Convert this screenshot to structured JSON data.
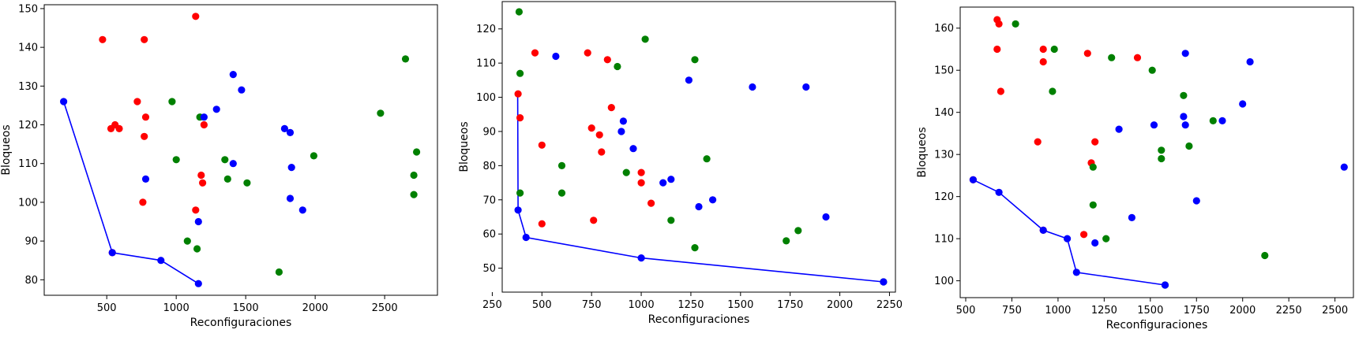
{
  "colors": {
    "red": "#ff0000",
    "green": "#008000",
    "blue": "#0000ff",
    "frontier": "#0000ff"
  },
  "chart_data": [
    {
      "type": "scatter",
      "xlabel": "Reconfiguraciones",
      "ylabel": "Bloqueos",
      "xlim": [
        50,
        2880
      ],
      "ylim": [
        76,
        151
      ],
      "xticks": [
        500,
        1000,
        1500,
        2000,
        2500
      ],
      "yticks": [
        80,
        90,
        100,
        110,
        120,
        130,
        140,
        150
      ],
      "series": [
        {
          "color": "red",
          "points": [
            [
              470,
              142
            ],
            [
              770,
              142
            ],
            [
              1140,
              148
            ],
            [
              780,
              122
            ],
            [
              720,
              126
            ],
            [
              560,
              120
            ],
            [
              530,
              119
            ],
            [
              590,
              119
            ],
            [
              770,
              117
            ],
            [
              1200,
              120
            ],
            [
              1180,
              107
            ],
            [
              1190,
              105
            ],
            [
              760,
              100
            ],
            [
              1140,
              98
            ],
            [
              540,
              87
            ]
          ]
        },
        {
          "color": "green",
          "points": [
            [
              970,
              126
            ],
            [
              1170,
              122
            ],
            [
              1000,
              111
            ],
            [
              1350,
              111
            ],
            [
              1370,
              106
            ],
            [
              1510,
              105
            ],
            [
              1080,
              90
            ],
            [
              1150,
              88
            ],
            [
              1740,
              82
            ],
            [
              1990,
              112
            ],
            [
              2470,
              123
            ],
            [
              2650,
              137
            ],
            [
              2730,
              113
            ],
            [
              2710,
              107
            ],
            [
              2710,
              102
            ]
          ]
        },
        {
          "color": "blue",
          "points": [
            [
              190,
              126
            ],
            [
              540,
              87
            ],
            [
              890,
              85
            ],
            [
              1160,
              79
            ],
            [
              780,
              106
            ],
            [
              1160,
              95
            ],
            [
              1200,
              122
            ],
            [
              1290,
              124
            ],
            [
              1410,
              133
            ],
            [
              1470,
              129
            ],
            [
              1410,
              110
            ],
            [
              1780,
              119
            ],
            [
              1820,
              118
            ],
            [
              1830,
              109
            ],
            [
              1820,
              101
            ],
            [
              1910,
              98
            ]
          ]
        }
      ],
      "frontier": [
        [
          190,
          126
        ],
        [
          540,
          87
        ],
        [
          890,
          85
        ],
        [
          1160,
          79
        ]
      ]
    },
    {
      "type": "scatter",
      "xlabel": "Reconfiguraciones",
      "ylabel": "Bloqueos",
      "xlim": [
        300,
        2280
      ],
      "ylim": [
        43,
        128
      ],
      "xticks": [
        250,
        500,
        750,
        1000,
        1250,
        1500,
        1750,
        2000,
        2250
      ],
      "yticks": [
        50,
        60,
        70,
        80,
        90,
        100,
        110,
        120
      ],
      "series": [
        {
          "color": "red",
          "points": [
            [
              465,
              113
            ],
            [
              730,
              113
            ],
            [
              830,
              111
            ],
            [
              380,
              101
            ],
            [
              390,
              94
            ],
            [
              850,
              97
            ],
            [
              750,
              91
            ],
            [
              790,
              89
            ],
            [
              500,
              86
            ],
            [
              800,
              84
            ],
            [
              1000,
              78
            ],
            [
              1000,
              75
            ],
            [
              1050,
              69
            ],
            [
              760,
              64
            ],
            [
              500,
              63
            ]
          ]
        },
        {
          "color": "green",
          "points": [
            [
              385,
              125
            ],
            [
              390,
              107
            ],
            [
              1020,
              117
            ],
            [
              1270,
              111
            ],
            [
              880,
              109
            ],
            [
              600,
              80
            ],
            [
              925,
              78
            ],
            [
              1330,
              82
            ],
            [
              390,
              72
            ],
            [
              600,
              72
            ],
            [
              1150,
              64
            ],
            [
              1270,
              56
            ],
            [
              1730,
              58
            ],
            [
              1790,
              61
            ],
            [
              2220,
              46
            ]
          ]
        },
        {
          "color": "blue",
          "points": [
            [
              570,
              112
            ],
            [
              1240,
              105
            ],
            [
              1560,
              103
            ],
            [
              1830,
              103
            ],
            [
              910,
              93
            ],
            [
              900,
              90
            ],
            [
              960,
              85
            ],
            [
              1110,
              75
            ],
            [
              1150,
              76
            ],
            [
              1360,
              70
            ],
            [
              1290,
              68
            ],
            [
              1930,
              65
            ],
            [
              380,
              67
            ],
            [
              420,
              59
            ],
            [
              1000,
              53
            ],
            [
              2220,
              46
            ]
          ]
        }
      ],
      "frontier": [
        [
          378,
          101
        ],
        [
          380,
          67
        ],
        [
          420,
          59
        ],
        [
          1000,
          53
        ],
        [
          2220,
          46
        ]
      ]
    },
    {
      "type": "scatter",
      "xlabel": "Reconfiguraciones",
      "ylabel": "Bloqueos",
      "xlim": [
        470,
        2600
      ],
      "ylim": [
        96,
        165
      ],
      "xticks": [
        500,
        750,
        1000,
        1250,
        1500,
        1750,
        2000,
        2250,
        2500
      ],
      "yticks": [
        100,
        110,
        120,
        130,
        140,
        150,
        160
      ],
      "series": [
        {
          "color": "red",
          "points": [
            [
              670,
              162
            ],
            [
              680,
              161
            ],
            [
              670,
              155
            ],
            [
              920,
              155
            ],
            [
              920,
              152
            ],
            [
              690,
              145
            ],
            [
              1160,
              154
            ],
            [
              1430,
              153
            ],
            [
              890,
              133
            ],
            [
              1200,
              133
            ],
            [
              1180,
              128
            ],
            [
              540,
              124
            ],
            [
              920,
              112
            ],
            [
              1140,
              111
            ]
          ]
        },
        {
          "color": "green",
          "points": [
            [
              770,
              161
            ],
            [
              980,
              155
            ],
            [
              1290,
              153
            ],
            [
              1510,
              150
            ],
            [
              970,
              145
            ],
            [
              1680,
              144
            ],
            [
              1840,
              138
            ],
            [
              1560,
              131
            ],
            [
              1710,
              132
            ],
            [
              1560,
              129
            ],
            [
              1190,
              127
            ],
            [
              1190,
              118
            ],
            [
              1260,
              110
            ],
            [
              1580,
              99
            ],
            [
              2120,
              106
            ]
          ]
        },
        {
          "color": "blue",
          "points": [
            [
              1690,
              154
            ],
            [
              2040,
              152
            ],
            [
              1680,
              139
            ],
            [
              1690,
              137
            ],
            [
              1890,
              138
            ],
            [
              1520,
              137
            ],
            [
              1330,
              136
            ],
            [
              2000,
              142
            ],
            [
              2550,
              127
            ],
            [
              1750,
              119
            ],
            [
              1400,
              115
            ],
            [
              1200,
              109
            ],
            [
              540,
              124
            ],
            [
              680,
              121
            ],
            [
              920,
              112
            ],
            [
              1050,
              110
            ],
            [
              1100,
              102
            ],
            [
              1580,
              99
            ]
          ]
        }
      ],
      "frontier": [
        [
          540,
          124
        ],
        [
          680,
          121
        ],
        [
          920,
          112
        ],
        [
          1050,
          110
        ],
        [
          1100,
          102
        ],
        [
          1580,
          99
        ]
      ]
    }
  ]
}
